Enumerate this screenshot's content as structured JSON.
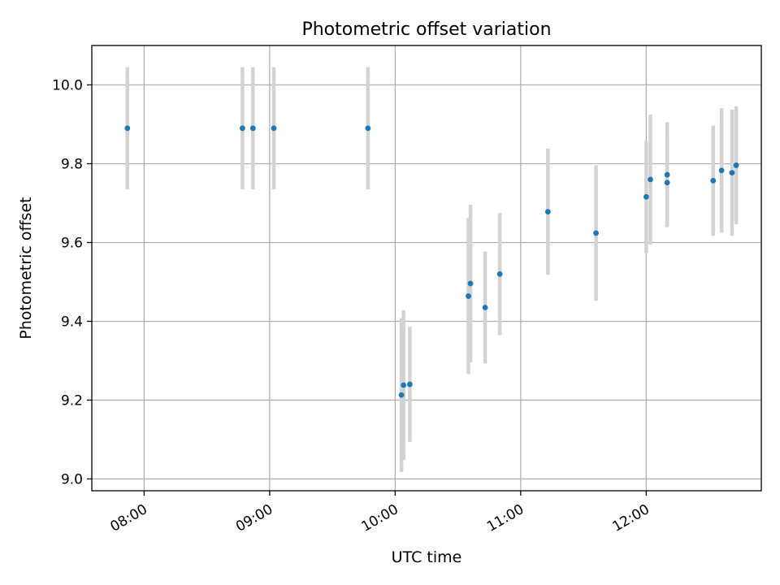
{
  "chart_data": {
    "type": "scatter",
    "title": "Photometric offset variation",
    "xlabel": "UTC time",
    "ylabel": "Photometric offset",
    "xlim": [
      "07:35",
      "12:55"
    ],
    "ylim": [
      8.97,
      10.1
    ],
    "x_ticks": [
      "08:00",
      "09:00",
      "10:00",
      "11:00",
      "12:00"
    ],
    "y_ticks": [
      9.0,
      9.2,
      9.4,
      9.6,
      9.8,
      10.0
    ],
    "y_tick_labels": [
      "9.0",
      "9.2",
      "9.4",
      "9.6",
      "9.8",
      "10.0"
    ],
    "grid": true,
    "colors": {
      "point": "#1f77b4",
      "errorbar": "#d3d3d3",
      "grid": "#b0b0b0"
    },
    "points": [
      {
        "x": "07:52",
        "y": 9.89,
        "err": 0.155
      },
      {
        "x": "08:47",
        "y": 9.89,
        "err": 0.155
      },
      {
        "x": "08:52",
        "y": 9.89,
        "err": 0.155
      },
      {
        "x": "09:02",
        "y": 9.89,
        "err": 0.155
      },
      {
        "x": "09:47",
        "y": 9.89,
        "err": 0.155
      },
      {
        "x": "10:03",
        "y": 9.213,
        "err": 0.195
      },
      {
        "x": "10:04",
        "y": 9.238,
        "err": 0.19
      },
      {
        "x": "10:07",
        "y": 9.24,
        "err": 0.146
      },
      {
        "x": "10:35",
        "y": 9.464,
        "err": 0.198
      },
      {
        "x": "10:36",
        "y": 9.496,
        "err": 0.2
      },
      {
        "x": "10:43",
        "y": 9.435,
        "err": 0.142
      },
      {
        "x": "10:50",
        "y": 9.52,
        "err": 0.155
      },
      {
        "x": "11:13",
        "y": 9.678,
        "err": 0.16
      },
      {
        "x": "11:36",
        "y": 9.624,
        "err": 0.172
      },
      {
        "x": "12:00",
        "y": 9.716,
        "err": 0.142
      },
      {
        "x": "12:02",
        "y": 9.76,
        "err": 0.165
      },
      {
        "x": "12:10",
        "y": 9.752,
        "err": 0.112
      },
      {
        "x": "12:10",
        "y": 9.772,
        "err": 0.133
      },
      {
        "x": "12:32",
        "y": 9.757,
        "err": 0.14
      },
      {
        "x": "12:36",
        "y": 9.783,
        "err": 0.158
      },
      {
        "x": "12:41",
        "y": 9.777,
        "err": 0.16
      },
      {
        "x": "12:43",
        "y": 9.796,
        "err": 0.15
      }
    ]
  }
}
